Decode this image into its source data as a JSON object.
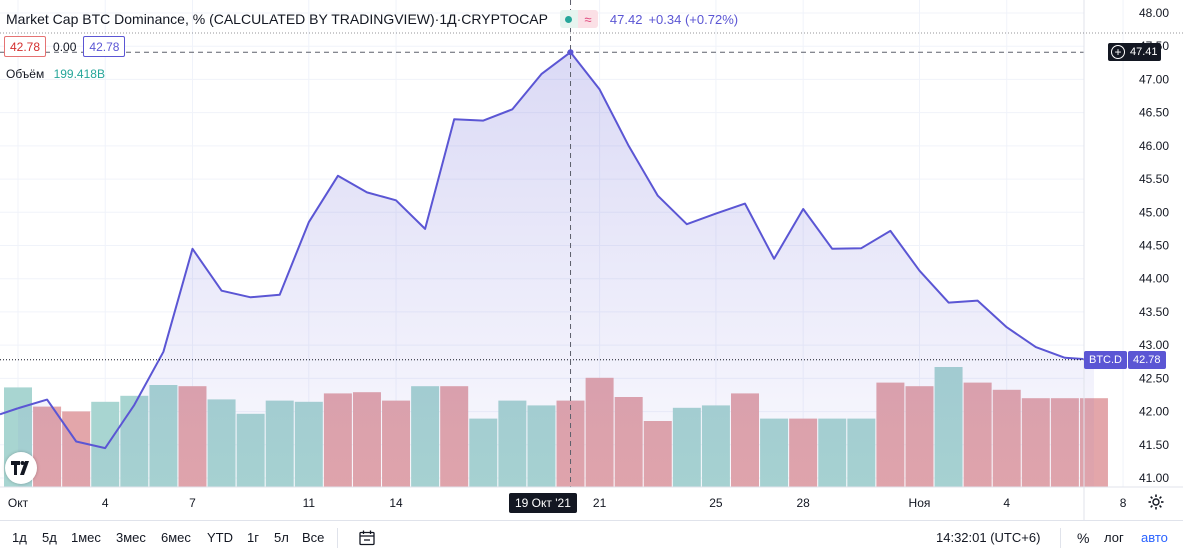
{
  "header": {
    "title": "Market Cap BTC Dominance, % (CALCULATED BY TRADINGVIEW)",
    "separator": " · ",
    "interval": "1Д",
    "exchange": "CRYPTOCAP",
    "last_price": "47.42",
    "change": "+0.34 (+0.72%)",
    "approx_glyph": "≈"
  },
  "ohlc": {
    "open_box": "42.78",
    "middle": "0.00",
    "close_box": "42.78"
  },
  "volume": {
    "label": "Объём",
    "value": "199.418B"
  },
  "axis_tags": {
    "crosshair_price": "47.41",
    "symbol": "BTC.D",
    "last_value": "42.78",
    "crosshair_date": "19 Окт '21",
    "plus_icon": "plus-circle-icon"
  },
  "colors": {
    "line": "#5b56d4",
    "area_top": "rgba(91,86,212,0.22)",
    "area_bottom": "rgba(91,86,212,0.03)",
    "vol_up": "#a8d5d1",
    "vol_down": "#e3a6aa",
    "crosshair_tag": "#131722"
  },
  "chart_data": {
    "type": "line",
    "title": "Market Cap BTC Dominance, % (CALCULATED BY TRADINGVIEW)",
    "xlabel": "",
    "ylabel": "",
    "ylim": [
      40.9,
      48.1
    ],
    "y_ticks": [
      "41.00",
      "41.50",
      "42.00",
      "42.50",
      "43.00",
      "43.50",
      "44.00",
      "44.50",
      "45.00",
      "45.50",
      "46.00",
      "46.50",
      "47.00",
      "47.50",
      "48.00"
    ],
    "x_tick_labels": [
      {
        "label": "Окт",
        "day": 1
      },
      {
        "label": "4",
        "day": 4
      },
      {
        "label": "7",
        "day": 7
      },
      {
        "label": "11",
        "day": 11
      },
      {
        "label": "14",
        "day": 14
      },
      {
        "label": "21",
        "day": 21
      },
      {
        "label": "25",
        "day": 25
      },
      {
        "label": "28",
        "day": 28
      },
      {
        "label": "Ноя",
        "day": 32
      },
      {
        "label": "4",
        "day": 35
      },
      {
        "label": "8",
        "day": 39
      }
    ],
    "series": [
      {
        "name": "BTC.D",
        "x": [
          0,
          1,
          2,
          3,
          4,
          5,
          6,
          7,
          8,
          9,
          10,
          11,
          12,
          13,
          14,
          15,
          16,
          17,
          18,
          19,
          20,
          21,
          22,
          23,
          24,
          25,
          26,
          27,
          28,
          29,
          30,
          31,
          32,
          33,
          34,
          35,
          36,
          37
        ],
        "values": [
          42.05,
          42.18,
          41.55,
          41.45,
          42.1,
          42.9,
          44.45,
          43.82,
          43.72,
          43.76,
          44.85,
          45.55,
          45.3,
          45.18,
          44.75,
          46.4,
          46.38,
          46.55,
          47.08,
          47.41,
          46.85,
          46.0,
          45.25,
          44.82,
          44.98,
          45.13,
          44.3,
          45.05,
          44.45,
          44.46,
          44.72,
          44.12,
          43.64,
          43.67,
          43.27,
          42.97,
          42.81,
          42.78
        ]
      },
      {
        "name": "Объём",
        "x": [
          0,
          1,
          2,
          3,
          4,
          5,
          6,
          7,
          8,
          9,
          10,
          11,
          12,
          13,
          14,
          15,
          16,
          17,
          18,
          19,
          20,
          21,
          22,
          23,
          24,
          25,
          26,
          27,
          28,
          29,
          30,
          31,
          32,
          33,
          34,
          35,
          36,
          37
        ],
        "volume_relative": [
          0.83,
          0.67,
          0.63,
          0.71,
          0.76,
          0.85,
          0.84,
          0.73,
          0.61,
          0.72,
          0.71,
          0.78,
          0.79,
          0.72,
          0.84,
          0.84,
          0.57,
          0.72,
          0.68,
          0.72,
          0.91,
          0.75,
          0.55,
          0.66,
          0.68,
          0.78,
          0.57,
          0.57,
          0.57,
          0.57,
          0.87,
          0.84,
          1.0,
          0.87,
          0.81,
          0.74,
          0.74,
          0.74
        ],
        "direction": [
          "up",
          "down",
          "down",
          "up",
          "up",
          "up",
          "down",
          "up",
          "up",
          "up",
          "up",
          "down",
          "down",
          "down",
          "up",
          "down",
          "up",
          "up",
          "up",
          "down",
          "down",
          "down",
          "down",
          "up",
          "up",
          "down",
          "up",
          "down",
          "up",
          "up",
          "down",
          "down",
          "up",
          "down",
          "down",
          "down",
          "down",
          "down"
        ]
      }
    ],
    "last_value": 42.78,
    "crosshair": {
      "x": 19,
      "y": 47.41
    }
  },
  "bottom": {
    "timeframes": [
      "1д",
      "5д",
      "1мес",
      "3мес",
      "6мес",
      "YTD",
      "1г",
      "5л",
      "Все"
    ],
    "time": "14:32:01 (UTC+6)",
    "percent": "%",
    "log": "лог",
    "auto": "авто"
  }
}
